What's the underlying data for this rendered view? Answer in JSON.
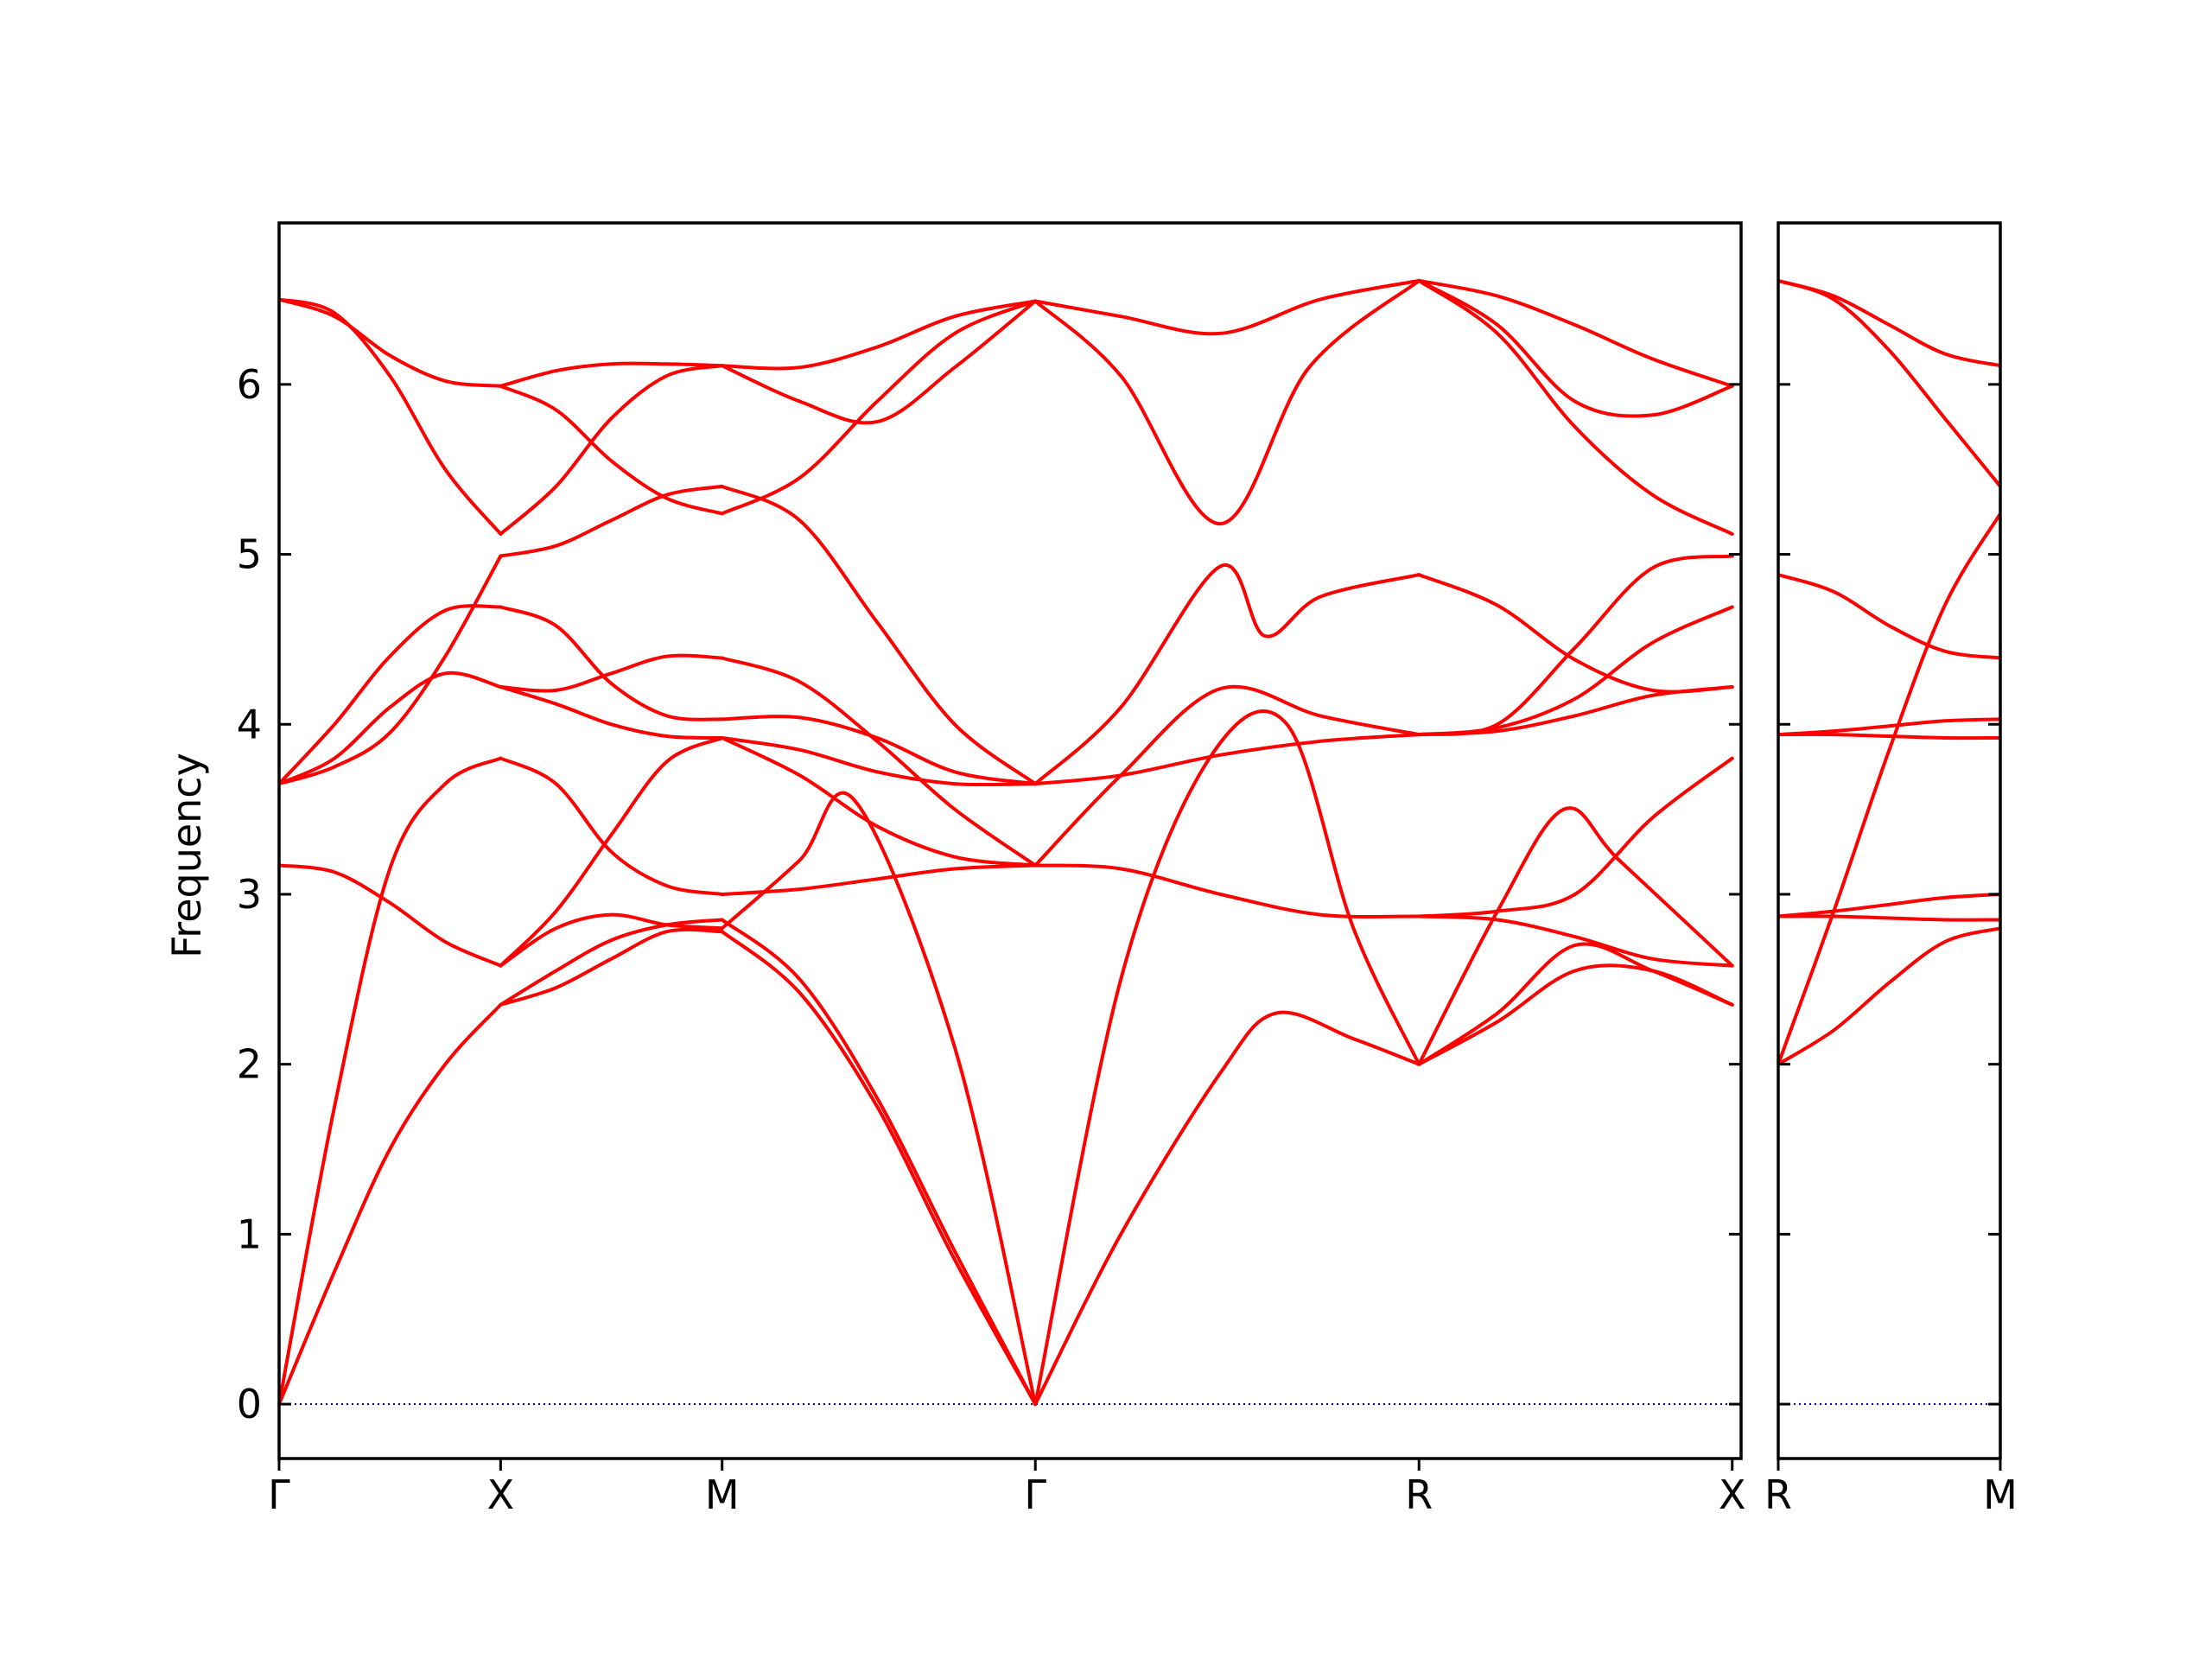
{
  "chart_data": {
    "type": "line",
    "ylabel": "Frequency",
    "ylim": [
      -0.32,
      6.95
    ],
    "y_ticks": [
      0,
      1,
      2,
      3,
      4,
      5,
      6
    ],
    "colors": {
      "bands": "#ff0000",
      "zero_line": "#0000aa"
    },
    "grid": false,
    "legend": "none",
    "panels": [
      {
        "name": "left",
        "xlim": [
          0,
          6.6
        ],
        "x_ticks": [
          {
            "x": 0,
            "label": "Γ"
          },
          {
            "x": 1.0,
            "label": "X"
          },
          {
            "x": 2.0,
            "label": "M"
          },
          {
            "x": 3.414,
            "label": "Γ"
          },
          {
            "x": 5.146,
            "label": "R"
          },
          {
            "x": 6.56,
            "label": "X"
          }
        ],
        "series": [
          {
            "x": [
              0,
              0.25,
              0.5,
              0.75,
              1.0
            ],
            "values": [
              3.65,
              3.8,
              4.1,
              4.3,
              4.22
            ]
          },
          {
            "x": [
              0,
              0.25,
              0.5,
              0.75,
              1.0
            ],
            "values": [
              3.65,
              4.0,
              4.4,
              4.67,
              4.69
            ]
          },
          {
            "x": [
              0,
              0.25,
              0.5,
              0.75,
              1.0
            ],
            "values": [
              6.5,
              6.4,
              6.17,
              6.02,
              5.99
            ]
          },
          {
            "x": [
              0,
              0.25,
              0.5,
              0.75,
              1.0
            ],
            "values": [
              6.5,
              6.42,
              6.05,
              5.5,
              5.12
            ]
          },
          {
            "x": [
              0,
              0.25,
              0.5,
              0.75,
              1.0
            ],
            "values": [
              3.65,
              3.75,
              3.95,
              4.4,
              4.99
            ]
          },
          {
            "x": [
              0,
              0.25,
              0.5,
              0.75,
              1.0
            ],
            "values": [
              3.17,
              3.13,
              2.95,
              2.72,
              2.58
            ]
          },
          {
            "x": [
              0,
              0.25,
              0.5,
              0.75,
              1.0
            ],
            "values": [
              0.0,
              1.75,
              3.15,
              3.65,
              3.8
            ]
          },
          {
            "x": [
              0,
              0.25,
              0.5,
              0.75,
              1.0
            ],
            "values": [
              0.0,
              0.78,
              1.5,
              2.0,
              2.35
            ]
          },
          {
            "x": [
              1.0,
              1.25,
              1.5,
              1.75,
              2.0
            ],
            "values": [
              4.22,
              4.2,
              4.3,
              4.4,
              4.39
            ]
          },
          {
            "x": [
              1.0,
              1.25,
              1.5,
              1.75,
              2.0
            ],
            "values": [
              4.69,
              4.58,
              4.24,
              4.05,
              4.03
            ]
          },
          {
            "x": [
              1.0,
              1.25,
              1.5,
              1.75,
              2.0
            ],
            "values": [
              5.99,
              6.08,
              6.12,
              6.12,
              6.11
            ]
          },
          {
            "x": [
              1.0,
              1.25,
              1.5,
              1.75,
              2.0
            ],
            "values": [
              5.99,
              5.85,
              5.55,
              5.33,
              5.24
            ]
          },
          {
            "x": [
              1.0,
              1.25,
              1.5,
              1.75,
              2.0
            ],
            "values": [
              5.12,
              5.4,
              5.8,
              6.05,
              6.11
            ]
          },
          {
            "x": [
              1.0,
              1.25,
              1.5,
              1.75,
              2.0
            ],
            "values": [
              4.99,
              5.05,
              5.2,
              5.35,
              5.4
            ]
          },
          {
            "x": [
              1.0,
              1.25,
              1.5,
              1.75,
              2.0
            ],
            "values": [
              4.22,
              4.12,
              4.0,
              3.93,
              3.92
            ]
          },
          {
            "x": [
              1.0,
              1.25,
              1.5,
              1.75,
              2.0
            ],
            "values": [
              2.58,
              2.9,
              3.35,
              3.78,
              3.92
            ]
          },
          {
            "x": [
              1.0,
              1.25,
              1.5,
              1.75,
              2.0
            ],
            "values": [
              3.8,
              3.65,
              3.25,
              3.05,
              3.0
            ]
          },
          {
            "x": [
              1.0,
              1.25,
              1.5,
              1.75,
              2.0
            ],
            "values": [
              2.58,
              2.8,
              2.88,
              2.82,
              2.8
            ]
          },
          {
            "x": [
              1.0,
              1.25,
              1.5,
              1.75,
              2.0
            ],
            "values": [
              2.35,
              2.55,
              2.73,
              2.82,
              2.85
            ]
          },
          {
            "x": [
              1.0,
              1.25,
              1.5,
              1.75,
              2.0
            ],
            "values": [
              2.35,
              2.45,
              2.62,
              2.78,
              2.78
            ]
          },
          {
            "x": [
              2.0,
              2.35,
              2.7,
              3.05,
              3.414
            ],
            "values": [
              6.11,
              6.1,
              6.22,
              6.4,
              6.49
            ]
          },
          {
            "x": [
              2.0,
              2.35,
              2.7,
              3.05,
              3.414
            ],
            "values": [
              6.11,
              5.9,
              5.78,
              6.1,
              6.49
            ]
          },
          {
            "x": [
              2.0,
              2.35,
              2.7,
              3.05,
              3.414
            ],
            "values": [
              5.24,
              5.45,
              5.9,
              6.3,
              6.49
            ]
          },
          {
            "x": [
              2.0,
              2.35,
              2.7,
              3.05,
              3.414
            ],
            "values": [
              5.4,
              5.2,
              4.6,
              4.0,
              3.65
            ]
          },
          {
            "x": [
              2.0,
              2.35,
              2.7,
              3.05,
              3.414
            ],
            "values": [
              4.39,
              4.25,
              3.9,
              3.5,
              3.17
            ]
          },
          {
            "x": [
              2.0,
              2.35,
              2.7,
              3.05,
              3.414
            ],
            "values": [
              4.03,
              4.04,
              3.92,
              3.72,
              3.65
            ]
          },
          {
            "x": [
              2.0,
              2.35,
              2.7,
              3.05,
              3.414
            ],
            "values": [
              3.92,
              3.85,
              3.72,
              3.65,
              3.65
            ]
          },
          {
            "x": [
              2.0,
              2.35,
              2.7,
              3.05,
              3.414
            ],
            "values": [
              3.92,
              3.7,
              3.4,
              3.22,
              3.17
            ]
          },
          {
            "x": [
              2.0,
              2.35,
              2.7,
              3.05,
              3.414
            ],
            "values": [
              3.0,
              3.03,
              3.09,
              3.15,
              3.17
            ]
          },
          {
            "x": [
              2.0,
              2.35,
              2.6,
              3.05,
              3.414
            ],
            "values": [
              2.8,
              3.2,
              3.55,
              2.1,
              0.0
            ]
          },
          {
            "x": [
              2.0,
              2.35,
              2.7,
              3.05,
              3.414
            ],
            "values": [
              2.85,
              2.5,
              1.8,
              0.9,
              0.0
            ]
          },
          {
            "x": [
              2.0,
              2.35,
              2.7,
              3.05,
              3.414
            ],
            "values": [
              2.78,
              2.42,
              1.75,
              0.85,
              0.0
            ]
          },
          {
            "x": [
              3.414,
              3.8,
              4.25,
              4.7,
              5.146
            ],
            "values": [
              6.49,
              6.4,
              6.3,
              6.5,
              6.61
            ]
          },
          {
            "x": [
              3.414,
              3.8,
              4.25,
              4.65,
              5.146
            ],
            "values": [
              6.49,
              6.05,
              5.18,
              6.1,
              6.61
            ]
          },
          {
            "x": [
              3.414,
              3.8,
              4.25,
              4.45,
              4.7,
              5.146
            ],
            "values": [
              3.65,
              4.1,
              4.93,
              4.52,
              4.75,
              4.88
            ]
          },
          {
            "x": [
              3.414,
              3.8,
              4.25,
              4.7,
              5.146
            ],
            "values": [
              3.17,
              3.7,
              4.21,
              4.05,
              3.94
            ]
          },
          {
            "x": [
              3.414,
              3.8,
              4.25,
              4.7,
              5.146
            ],
            "values": [
              3.65,
              3.7,
              3.82,
              3.9,
              3.94
            ]
          },
          {
            "x": [
              3.414,
              3.8,
              4.25,
              4.7,
              5.146
            ],
            "values": [
              3.17,
              3.15,
              3.0,
              2.88,
              2.87
            ]
          },
          {
            "x": [
              3.414,
              3.8,
              4.2,
              4.55,
              4.85,
              5.146
            ],
            "values": [
              0.0,
              2.5,
              3.8,
              4.0,
              2.8,
              2.0
            ]
          },
          {
            "x": [
              3.414,
              3.8,
              4.25,
              4.5,
              4.85,
              5.146
            ],
            "values": [
              0.0,
              1.0,
              1.95,
              2.3,
              2.15,
              2.0
            ]
          },
          {
            "x": [
              5.146,
              5.5,
              5.85,
              6.2,
              6.56
            ],
            "values": [
              6.61,
              6.52,
              6.35,
              6.15,
              5.99
            ]
          },
          {
            "x": [
              5.146,
              5.5,
              5.85,
              6.2,
              6.56
            ],
            "values": [
              6.61,
              6.35,
              5.9,
              5.82,
              5.99
            ]
          },
          {
            "x": [
              5.146,
              5.5,
              5.85,
              6.2,
              6.56
            ],
            "values": [
              6.61,
              6.3,
              5.75,
              5.35,
              5.12
            ]
          },
          {
            "x": [
              5.146,
              5.5,
              5.85,
              6.2,
              6.56
            ],
            "values": [
              4.88,
              4.7,
              4.38,
              4.2,
              4.22
            ]
          },
          {
            "x": [
              5.146,
              5.5,
              5.85,
              6.2,
              6.56
            ],
            "values": [
              3.94,
              4.0,
              4.45,
              4.92,
              4.99
            ]
          },
          {
            "x": [
              5.146,
              5.5,
              5.85,
              6.2,
              6.56
            ],
            "values": [
              3.94,
              3.98,
              4.15,
              4.48,
              4.69
            ]
          },
          {
            "x": [
              5.146,
              5.5,
              5.85,
              6.2,
              6.56
            ],
            "values": [
              3.94,
              3.96,
              4.05,
              4.17,
              4.22
            ]
          },
          {
            "x": [
              5.146,
              5.5,
              5.85,
              6.2,
              6.56
            ],
            "values": [
              2.87,
              2.9,
              3.0,
              3.45,
              3.8
            ]
          },
          {
            "x": [
              5.146,
              5.5,
              5.85,
              6.2,
              6.56
            ],
            "values": [
              2.87,
              2.85,
              2.75,
              2.62,
              2.58
            ]
          },
          {
            "x": [
              5.146,
              5.5,
              5.8,
              6.05,
              6.56
            ],
            "values": [
              2.0,
              2.9,
              3.5,
              3.2,
              2.58
            ]
          },
          {
            "x": [
              5.146,
              5.5,
              5.85,
              6.2,
              6.56
            ],
            "values": [
              2.0,
              2.3,
              2.7,
              2.55,
              2.35
            ]
          },
          {
            "x": [
              5.146,
              5.5,
              5.85,
              6.2,
              6.56
            ],
            "values": [
              2.0,
              2.25,
              2.55,
              2.55,
              2.35
            ]
          }
        ]
      },
      {
        "name": "right",
        "xlim": [
          0,
          1.0
        ],
        "x_ticks": [
          {
            "x": 0,
            "label": "R"
          },
          {
            "x": 1.0,
            "label": "M"
          }
        ],
        "series": [
          {
            "x": [
              0,
              0.25,
              0.5,
              0.75,
              1.0
            ],
            "values": [
              6.61,
              6.52,
              6.35,
              6.18,
              6.11
            ]
          },
          {
            "x": [
              0,
              0.25,
              0.5,
              0.75,
              1.0
            ],
            "values": [
              6.61,
              6.5,
              6.2,
              5.8,
              5.4
            ]
          },
          {
            "x": [
              0,
              0.25,
              0.5,
              0.75,
              1.0
            ],
            "values": [
              2.0,
              2.9,
              3.85,
              4.7,
              5.24
            ]
          },
          {
            "x": [
              0,
              0.25,
              0.5,
              0.75,
              1.0
            ],
            "values": [
              4.88,
              4.78,
              4.58,
              4.43,
              4.39
            ]
          },
          {
            "x": [
              0,
              0.25,
              0.5,
              0.75,
              1.0
            ],
            "values": [
              3.94,
              3.96,
              3.99,
              4.02,
              4.03
            ]
          },
          {
            "x": [
              0,
              0.25,
              0.5,
              0.75,
              1.0
            ],
            "values": [
              3.94,
              3.94,
              3.93,
              3.92,
              3.92
            ]
          },
          {
            "x": [
              0,
              0.25,
              0.5,
              0.75,
              1.0
            ],
            "values": [
              2.87,
              2.9,
              2.94,
              2.98,
              3.0
            ]
          },
          {
            "x": [
              0,
              0.25,
              0.5,
              0.75,
              1.0
            ],
            "values": [
              2.87,
              2.87,
              2.86,
              2.85,
              2.85
            ]
          },
          {
            "x": [
              0,
              0.25,
              0.5,
              0.75,
              1.0
            ],
            "values": [
              2.0,
              2.2,
              2.48,
              2.72,
              2.8
            ]
          }
        ]
      }
    ]
  }
}
